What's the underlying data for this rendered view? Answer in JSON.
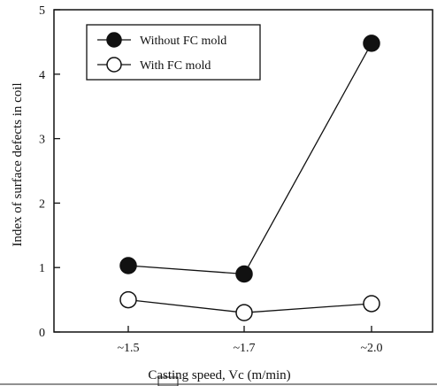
{
  "chart_data": {
    "type": "line",
    "categories": [
      "~1.5",
      "~1.7",
      "~2.0"
    ],
    "series": [
      {
        "name": "Without FC mold",
        "marker": "filled-circle",
        "values": [
          1.03,
          0.9,
          4.48
        ]
      },
      {
        "name": "With FC mold",
        "marker": "open-circle",
        "values": [
          0.5,
          0.3,
          0.44
        ]
      }
    ],
    "ylim": [
      0,
      5
    ],
    "yticks": [
      "0",
      "1",
      "2",
      "3",
      "4",
      "5"
    ],
    "ylabel": "Index of surface defects in coil",
    "xlabel": "Casting speed, Vc (m/min)",
    "legend_position": "top-left",
    "grid": false,
    "colors": {
      "line": "#111111",
      "filled_marker": "#111111",
      "open_marker_fill": "#ffffff"
    }
  }
}
